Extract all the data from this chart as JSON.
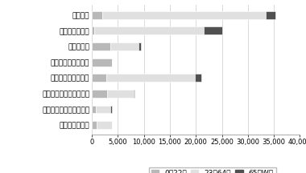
{
  "categories": [
    "日中活動",
    "成人用特別住宅",
    "短期ステイ",
    "レスパイトサービス",
    "コンタクトパーソン",
    "ガイドヘルパーサービス",
    "パーソナルアシスタンス",
    "相談・個別援助"
  ],
  "series": [
    {
      "label": "0～22歳",
      "color": "#b8b8b8",
      "values": [
        2000,
        500,
        3500,
        3800,
        2800,
        3000,
        800,
        900
      ]
    },
    {
      "label": "23～64歳",
      "color": "#e0e0e0",
      "values": [
        31500,
        21000,
        5500,
        0,
        17000,
        5000,
        2800,
        3000
      ]
    },
    {
      "label": "65～W歳",
      "color": "#505050",
      "values": [
        1800,
        3500,
        500,
        0,
        1200,
        200,
        300,
        0
      ]
    }
  ],
  "xlim": [
    0,
    40000
  ],
  "xticks": [
    0,
    5000,
    10000,
    15000,
    20000,
    25000,
    30000,
    35000,
    40000
  ],
  "background_color": "#ffffff",
  "bar_height": 0.5,
  "label_fontsize": 6.5,
  "tick_fontsize": 6,
  "legend_fontsize": 6.5
}
